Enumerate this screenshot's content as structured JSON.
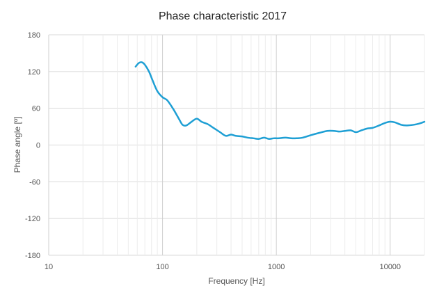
{
  "chart_data": {
    "type": "line",
    "title": "Phase characteristic 2017",
    "xlabel": "Frequency [Hz]",
    "ylabel": "Phase angle [º]",
    "xscale": "log",
    "xlim": [
      10,
      20000
    ],
    "ylim": [
      -180,
      180
    ],
    "x_ticks": [
      10,
      100,
      1000,
      10000
    ],
    "x_tick_labels": [
      "10",
      "100",
      "1000",
      "10000"
    ],
    "y_ticks": [
      180,
      120,
      60,
      0,
      -60,
      -120,
      -180
    ],
    "y_tick_labels": [
      "180",
      "120",
      "60",
      "0",
      "-60",
      "-120",
      "-180"
    ],
    "grid": true,
    "legend": "none",
    "colors": {
      "series": "#1e9fd4",
      "grid": "#d9d9d9",
      "text": "#555555"
    },
    "series": [
      {
        "x": [
          58,
          62,
          66,
          70,
          76,
          82,
          90,
          100,
          110,
          125,
          140,
          150,
          162,
          180,
          200,
          220,
          250,
          280,
          320,
          360,
          400,
          440,
          500,
          560,
          630,
          700,
          780,
          860,
          950,
          1050,
          1200,
          1350,
          1500,
          1700,
          2000,
          2400,
          2800,
          3200,
          3600,
          4000,
          4500,
          5000,
          5600,
          6300,
          7000,
          8000,
          9000,
          10000,
          11000,
          12500,
          14000,
          16000,
          18000,
          20000
        ],
        "y": [
          128,
          134,
          135,
          131,
          120,
          105,
          88,
          78,
          73,
          58,
          42,
          33,
          32,
          38,
          43,
          38,
          34,
          28,
          21,
          15,
          17,
          15,
          14,
          12,
          11,
          10,
          12,
          10,
          11,
          11,
          12,
          11,
          11,
          12,
          16,
          20,
          23,
          23,
          22,
          23,
          24,
          21,
          24,
          27,
          28,
          32,
          36,
          38,
          37,
          33,
          32,
          33,
          35,
          38
        ]
      }
    ]
  }
}
